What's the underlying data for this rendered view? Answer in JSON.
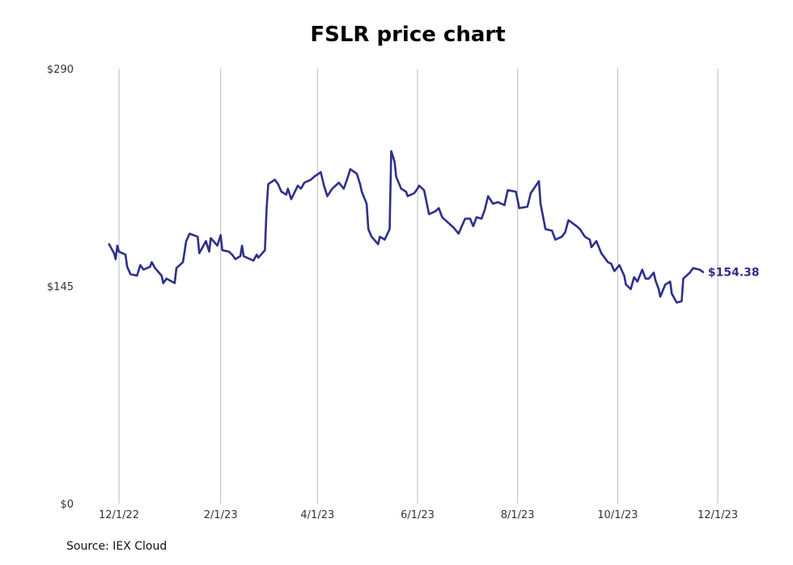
{
  "chart_data": {
    "type": "line",
    "title": "FSLR price chart",
    "source": "Source: IEX Cloud",
    "xlabel": "",
    "ylabel": "",
    "ylim": [
      0,
      290
    ],
    "y_ticks": [
      {
        "value": 0,
        "label": "$0"
      },
      {
        "value": 145,
        "label": "$145"
      },
      {
        "value": 290,
        "label": "$290"
      }
    ],
    "x_range": [
      "2022-11-24",
      "2023-12-01"
    ],
    "x_ticks": [
      {
        "date": "2022-12-01",
        "label": "12/1/22"
      },
      {
        "date": "2023-02-01",
        "label": "2/1/23"
      },
      {
        "date": "2023-04-01",
        "label": "4/1/23"
      },
      {
        "date": "2023-06-01",
        "label": "6/1/23"
      },
      {
        "date": "2023-08-01",
        "label": "8/1/23"
      },
      {
        "date": "2023-10-01",
        "label": "10/1/23"
      },
      {
        "date": "2023-12-01",
        "label": "12/1/23"
      }
    ],
    "grid": "vertical",
    "line_color": "#2e2f8c",
    "last_value_label": "$154.38",
    "series": [
      {
        "name": "",
        "points": [
          [
            "2022-11-25",
            173
          ],
          [
            "2022-11-28",
            167
          ],
          [
            "2022-11-29",
            163
          ],
          [
            "2022-11-30",
            172
          ],
          [
            "2022-12-01",
            168
          ],
          [
            "2022-12-05",
            166
          ],
          [
            "2022-12-06",
            158
          ],
          [
            "2022-12-08",
            153
          ],
          [
            "2022-12-12",
            152
          ],
          [
            "2022-12-14",
            159
          ],
          [
            "2022-12-16",
            156
          ],
          [
            "2022-12-20",
            158
          ],
          [
            "2022-12-21",
            161
          ],
          [
            "2022-12-23",
            157
          ],
          [
            "2022-12-27",
            152
          ],
          [
            "2022-12-28",
            147
          ],
          [
            "2022-12-30",
            150
          ],
          [
            "2023-01-04",
            147
          ],
          [
            "2023-01-05",
            157
          ],
          [
            "2023-01-09",
            161
          ],
          [
            "2023-01-10",
            168
          ],
          [
            "2023-01-11",
            175
          ],
          [
            "2023-01-13",
            180
          ],
          [
            "2023-01-18",
            178
          ],
          [
            "2023-01-19",
            167
          ],
          [
            "2023-01-23",
            175
          ],
          [
            "2023-01-25",
            168
          ],
          [
            "2023-01-26",
            177
          ],
          [
            "2023-01-30",
            172
          ],
          [
            "2023-02-01",
            179
          ],
          [
            "2023-02-02",
            169
          ],
          [
            "2023-02-06",
            168
          ],
          [
            "2023-02-08",
            166
          ],
          [
            "2023-02-10",
            163
          ],
          [
            "2023-02-13",
            165
          ],
          [
            "2023-02-14",
            172
          ],
          [
            "2023-02-15",
            165
          ],
          [
            "2023-02-21",
            162
          ],
          [
            "2023-02-23",
            166
          ],
          [
            "2023-02-24",
            164
          ],
          [
            "2023-02-28",
            169
          ],
          [
            "2023-03-01",
            197
          ],
          [
            "2023-03-02",
            213
          ],
          [
            "2023-03-06",
            216
          ],
          [
            "2023-03-08",
            213
          ],
          [
            "2023-03-10",
            208
          ],
          [
            "2023-03-13",
            206
          ],
          [
            "2023-03-14",
            210
          ],
          [
            "2023-03-16",
            203
          ],
          [
            "2023-03-20",
            212
          ],
          [
            "2023-03-22",
            210
          ],
          [
            "2023-03-24",
            214
          ],
          [
            "2023-03-28",
            216
          ],
          [
            "2023-03-30",
            218
          ],
          [
            "2023-04-03",
            221
          ],
          [
            "2023-04-05",
            212
          ],
          [
            "2023-04-07",
            205
          ],
          [
            "2023-04-10",
            210
          ],
          [
            "2023-04-14",
            214
          ],
          [
            "2023-04-17",
            210
          ],
          [
            "2023-04-19",
            216
          ],
          [
            "2023-04-21",
            223
          ],
          [
            "2023-04-25",
            220
          ],
          [
            "2023-04-27",
            213
          ],
          [
            "2023-04-28",
            208
          ],
          [
            "2023-05-01",
            200
          ],
          [
            "2023-05-02",
            183
          ],
          [
            "2023-05-04",
            178
          ],
          [
            "2023-05-08",
            173
          ],
          [
            "2023-05-09",
            178
          ],
          [
            "2023-05-12",
            176
          ],
          [
            "2023-05-15",
            183
          ],
          [
            "2023-05-16",
            235
          ],
          [
            "2023-05-18",
            228
          ],
          [
            "2023-05-19",
            218
          ],
          [
            "2023-05-22",
            210
          ],
          [
            "2023-05-25",
            208
          ],
          [
            "2023-05-26",
            205
          ],
          [
            "2023-05-30",
            207
          ],
          [
            "2023-06-01",
            210
          ],
          [
            "2023-06-02",
            212
          ],
          [
            "2023-06-05",
            209
          ],
          [
            "2023-06-08",
            193
          ],
          [
            "2023-06-12",
            195
          ],
          [
            "2023-06-14",
            197
          ],
          [
            "2023-06-16",
            191
          ],
          [
            "2023-06-20",
            187
          ],
          [
            "2023-06-23",
            184
          ],
          [
            "2023-06-26",
            180
          ],
          [
            "2023-06-28",
            185
          ],
          [
            "2023-06-30",
            190
          ],
          [
            "2023-07-03",
            190
          ],
          [
            "2023-07-05",
            185
          ],
          [
            "2023-07-07",
            191
          ],
          [
            "2023-07-10",
            190
          ],
          [
            "2023-07-12",
            196
          ],
          [
            "2023-07-14",
            205
          ],
          [
            "2023-07-17",
            200
          ],
          [
            "2023-07-20",
            201
          ],
          [
            "2023-07-24",
            199
          ],
          [
            "2023-07-26",
            209
          ],
          [
            "2023-07-31",
            208
          ],
          [
            "2023-08-02",
            197
          ],
          [
            "2023-08-07",
            198
          ],
          [
            "2023-08-09",
            207
          ],
          [
            "2023-08-14",
            215
          ],
          [
            "2023-08-15",
            200
          ],
          [
            "2023-08-18",
            183
          ],
          [
            "2023-08-22",
            182
          ],
          [
            "2023-08-24",
            176
          ],
          [
            "2023-08-28",
            178
          ],
          [
            "2023-08-30",
            181
          ],
          [
            "2023-09-01",
            189
          ],
          [
            "2023-09-06",
            185
          ],
          [
            "2023-09-08",
            183
          ],
          [
            "2023-09-11",
            178
          ],
          [
            "2023-09-14",
            176
          ],
          [
            "2023-09-15",
            171
          ],
          [
            "2023-09-18",
            175
          ],
          [
            "2023-09-21",
            167
          ],
          [
            "2023-09-25",
            161
          ],
          [
            "2023-09-27",
            160
          ],
          [
            "2023-09-29",
            155
          ],
          [
            "2023-10-02",
            159
          ],
          [
            "2023-10-05",
            152
          ],
          [
            "2023-10-06",
            146
          ],
          [
            "2023-10-09",
            143
          ],
          [
            "2023-10-11",
            151
          ],
          [
            "2023-10-13",
            148
          ],
          [
            "2023-10-16",
            156
          ],
          [
            "2023-10-18",
            150
          ],
          [
            "2023-10-20",
            150
          ],
          [
            "2023-10-23",
            154
          ],
          [
            "2023-10-24",
            149
          ],
          [
            "2023-10-26",
            143
          ],
          [
            "2023-10-27",
            138
          ],
          [
            "2023-10-30",
            146
          ],
          [
            "2023-11-02",
            148
          ],
          [
            "2023-11-03",
            140
          ],
          [
            "2023-11-06",
            134
          ],
          [
            "2023-11-09",
            135
          ],
          [
            "2023-11-10",
            150
          ],
          [
            "2023-11-14",
            154
          ],
          [
            "2023-11-16",
            157
          ],
          [
            "2023-11-20",
            156
          ],
          [
            "2023-11-22",
            154.38
          ]
        ]
      }
    ]
  }
}
